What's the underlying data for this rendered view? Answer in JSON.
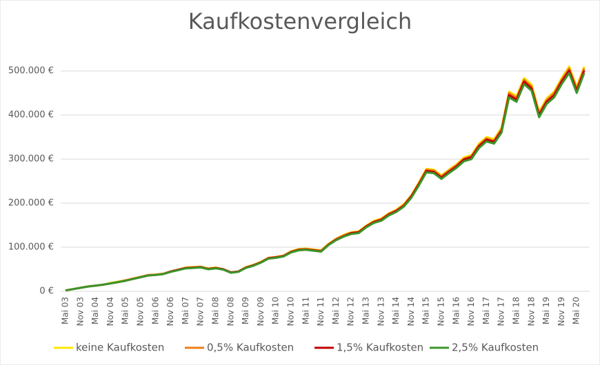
{
  "chart_data": {
    "type": "line",
    "title": "Kaufkostenvergleich",
    "categories": [
      "Mai 03",
      null,
      "Nov 03",
      null,
      "Mai 04",
      null,
      "Nov 04",
      null,
      "Mai 05",
      null,
      "Nov 05",
      null,
      "Mai 06",
      null,
      "Nov 06",
      null,
      "Mai 07",
      null,
      "Nov 07",
      null,
      "Mai 08",
      null,
      "Nov 08",
      null,
      "Mai 09",
      null,
      "Nov 09",
      null,
      "Mai 10",
      null,
      "Nov 10",
      null,
      "Mai 11",
      null,
      "Nov 11",
      null,
      "Mai 12",
      null,
      "Nov 12",
      null,
      "Mai 13",
      null,
      "Nov 13",
      null,
      "Mai 14",
      null,
      "Nov 14",
      null,
      "Mai 15",
      null,
      "Nov 15",
      null,
      "Mai 16",
      null,
      "Nov 16",
      null,
      "Mai 17",
      null,
      "Nov 17",
      null,
      "Mai 18",
      null,
      "Nov 18",
      null,
      "Mai 19",
      null,
      "Nov 19",
      null,
      "Mai 20",
      null
    ],
    "series": [
      {
        "name": "keine Kaufkosten",
        "color": "#ffe600",
        "values": [
          2000,
          5000,
          8000,
          11000,
          13000,
          15000,
          19000,
          22000,
          25000,
          29000,
          33000,
          37000,
          38000,
          40000,
          45000,
          49000,
          54000,
          55000,
          56000,
          52000,
          54000,
          50000,
          43000,
          45000,
          55000,
          60000,
          67000,
          76000,
          78000,
          81000,
          91000,
          96000,
          97000,
          95000,
          93000,
          108000,
          119000,
          128000,
          134000,
          136000,
          149000,
          160000,
          165000,
          177000,
          185000,
          198000,
          218000,
          247000,
          278000,
          276000,
          263000,
          276000,
          288000,
          304000,
          309000,
          335000,
          350000,
          345000,
          371000,
          453000,
          443000,
          484000,
          469000,
          407000,
          438000,
          453000,
          484000,
          510000,
          464000,
          510000
        ]
      },
      {
        "name": "0,5% Kaufkosten",
        "color": "#f07c14",
        "values": [
          2000,
          5000,
          8000,
          11000,
          13000,
          15000,
          18000,
          21000,
          25000,
          29000,
          33000,
          37000,
          38000,
          40000,
          45000,
          49000,
          53000,
          54000,
          55000,
          51000,
          53000,
          50000,
          43000,
          45000,
          54000,
          59000,
          66000,
          76000,
          78000,
          81000,
          90000,
          95000,
          96000,
          94000,
          92000,
          107000,
          119000,
          127000,
          133000,
          135000,
          148000,
          158000,
          164000,
          176000,
          184000,
          196000,
          217000,
          245000,
          276000,
          274000,
          261000,
          274000,
          286000,
          301000,
          307000,
          332000,
          347000,
          342000,
          368000,
          450000,
          439000,
          480000,
          465000,
          404000,
          434000,
          450000,
          480000,
          506000,
          460000,
          506000
        ]
      },
      {
        "name": "1,5% Kaufkosten",
        "color": "#c00000",
        "values": [
          2000,
          5000,
          8000,
          11000,
          13000,
          15000,
          18000,
          21000,
          24000,
          28000,
          32000,
          36000,
          37000,
          39000,
          45000,
          49000,
          53000,
          54000,
          55000,
          51000,
          53000,
          50000,
          43000,
          45000,
          54000,
          59000,
          66000,
          75000,
          77000,
          80000,
          89000,
          94000,
          95000,
          93000,
          91000,
          106000,
          117000,
          125000,
          132000,
          134000,
          147000,
          157000,
          162000,
          174000,
          182000,
          194000,
          215000,
          243000,
          273000,
          271000,
          258000,
          271000,
          283000,
          299000,
          304000,
          329000,
          344000,
          339000,
          364000,
          445000,
          435000,
          476000,
          460000,
          400000,
          430000,
          445000,
          476000,
          501000,
          455000,
          501000
        ]
      },
      {
        "name": "2,5% Kaufkosten",
        "color": "#3a962a",
        "values": [
          2000,
          5000,
          8000,
          11000,
          13000,
          15000,
          18000,
          21000,
          24000,
          28000,
          32000,
          36000,
          37000,
          39000,
          44000,
          48000,
          52000,
          53000,
          54000,
          50000,
          52000,
          49000,
          42000,
          44000,
          53000,
          58000,
          65000,
          74000,
          76000,
          79000,
          88000,
          93000,
          94000,
          92000,
          90000,
          105000,
          116000,
          124000,
          130000,
          132000,
          145000,
          155000,
          160000,
          172000,
          180000,
          192000,
          212000,
          240000,
          270000,
          268000,
          255000,
          268000,
          280000,
          295000,
          300000,
          325000,
          340000,
          335000,
          360000,
          440000,
          430000,
          470000,
          455000,
          395000,
          425000,
          440000,
          470000,
          495000,
          450000,
          495000
        ]
      }
    ],
    "ylim": [
      0,
      500000
    ],
    "yticks": [
      {
        "value": 0,
        "label": "0 €"
      },
      {
        "value": 100000,
        "label": "100.000 €"
      },
      {
        "value": 200000,
        "label": "200.000 €"
      },
      {
        "value": 300000,
        "label": "300.000 €"
      },
      {
        "value": 400000,
        "label": "400.000 €"
      },
      {
        "value": 500000,
        "label": "500.000 €"
      }
    ],
    "grid": true,
    "legend": "bottom"
  }
}
